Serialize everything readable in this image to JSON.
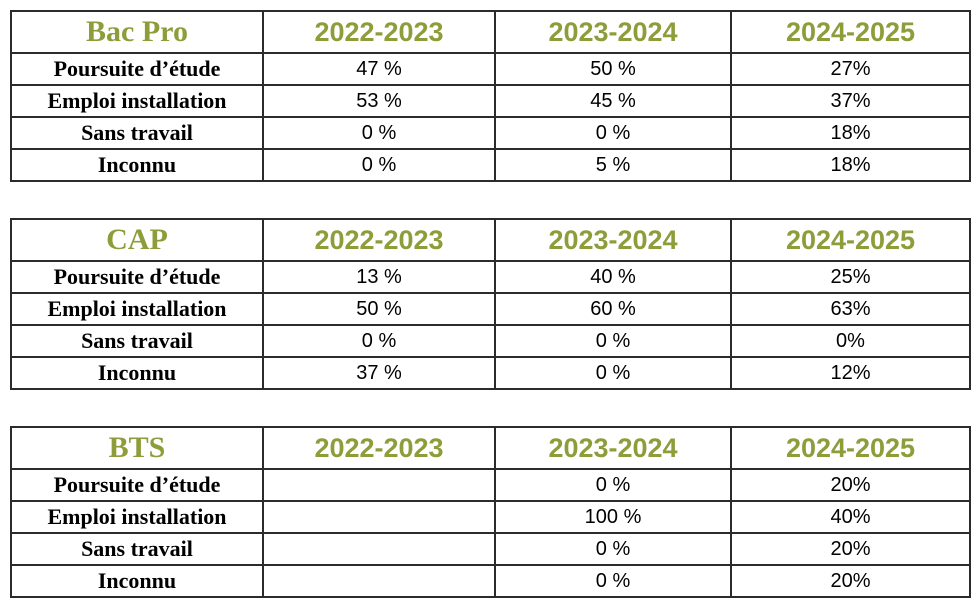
{
  "colors": {
    "accent": "#8E9C39",
    "text": "#000000",
    "border": "#2B2B2B",
    "background": "#FFFFFF"
  },
  "tables": [
    {
      "title": "Bac Pro",
      "columns": [
        "2022-2023",
        "2023-2024",
        "2024-2025"
      ],
      "rows": [
        {
          "label": "Poursuite d’étude",
          "values": [
            "47 %",
            "50 %",
            "27%"
          ]
        },
        {
          "label": "Emploi installation",
          "values": [
            "53 %",
            "45 %",
            "37%"
          ]
        },
        {
          "label": "Sans travail",
          "values": [
            "0 %",
            "0 %",
            "18%"
          ]
        },
        {
          "label": "Inconnu",
          "values": [
            "0 %",
            "5 %",
            "18%"
          ]
        }
      ]
    },
    {
      "title": "CAP",
      "columns": [
        "2022-2023",
        "2023-2024",
        "2024-2025"
      ],
      "rows": [
        {
          "label": "Poursuite d’étude",
          "values": [
            "13 %",
            "40 %",
            "25%"
          ]
        },
        {
          "label": "Emploi installation",
          "values": [
            "50 %",
            "60 %",
            "63%"
          ]
        },
        {
          "label": "Sans travail",
          "values": [
            "0 %",
            "0 %",
            "0%"
          ]
        },
        {
          "label": "Inconnu",
          "values": [
            "37 %",
            "0 %",
            "12%"
          ]
        }
      ]
    },
    {
      "title": "BTS",
      "columns": [
        "2022-2023",
        "2023-2024",
        "2024-2025"
      ],
      "rows": [
        {
          "label": "Poursuite d’étude",
          "values": [
            "",
            "0 %",
            "20%"
          ]
        },
        {
          "label": "Emploi installation",
          "values": [
            "",
            "100 %",
            "40%"
          ]
        },
        {
          "label": "Sans travail",
          "values": [
            "",
            "0 %",
            "20%"
          ]
        },
        {
          "label": "Inconnu",
          "values": [
            "",
            "0 %",
            "20%"
          ]
        }
      ]
    }
  ]
}
